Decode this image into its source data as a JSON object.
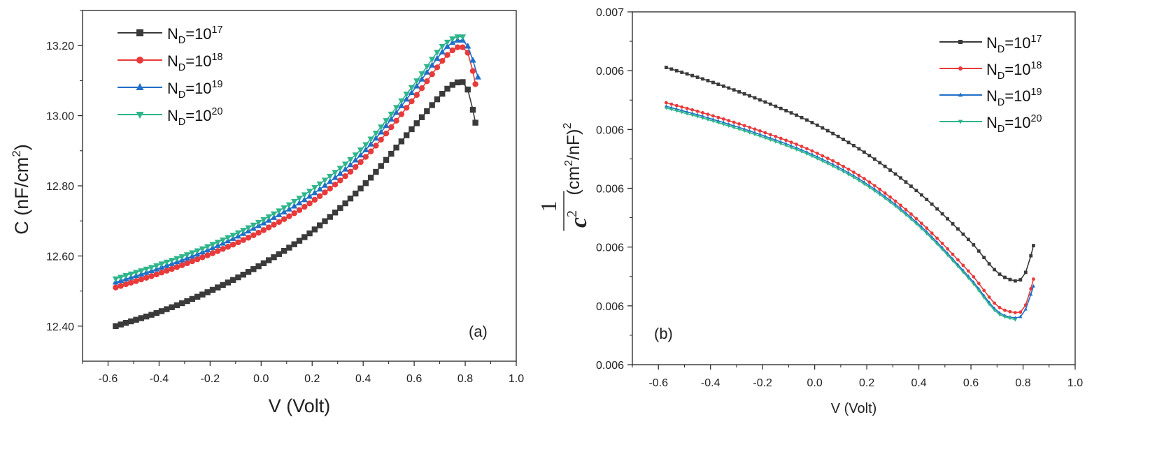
{
  "colors": {
    "black": "#3a3a3a",
    "red": "#e83a3a",
    "blue": "#1f6fc8",
    "green": "#2eb58a"
  },
  "chart_data": [
    {
      "panel_label": "(a)",
      "type": "line",
      "ylabel_main": "C (nF/cm",
      "ylabel_sup": "2",
      "ylabel_end": ")",
      "xlabel": "V (Volt)",
      "xlim": [
        -0.7,
        1.0
      ],
      "ylim": [
        12.3,
        13.3
      ],
      "xticks": [
        "-0.6",
        "-0.4",
        "-0.2",
        "0.0",
        "0.2",
        "0.4",
        "0.6",
        "0.8",
        "1.0"
      ],
      "yticks": [
        "12.40",
        "12.60",
        "12.80",
        "13.00",
        "13.20"
      ],
      "legend_placement": "top-left",
      "series": [
        {
          "name_base": "N",
          "name_sub": "D",
          "name_mid": "=10",
          "name_sup": "17",
          "color": "#3a3a3a",
          "marker": "square",
          "anchors": [
            [
              -0.57,
              12.4
            ],
            [
              -0.4,
              12.44
            ],
            [
              -0.2,
              12.5
            ],
            [
              0.0,
              12.575
            ],
            [
              0.2,
              12.67
            ],
            [
              0.4,
              12.8
            ],
            [
              0.6,
              12.97
            ],
            [
              0.72,
              13.07
            ],
            [
              0.77,
              13.095
            ],
            [
              0.8,
              13.09
            ],
            [
              0.82,
              13.05
            ],
            [
              0.84,
              12.98
            ]
          ]
        },
        {
          "name_base": "N",
          "name_sub": "D",
          "name_mid": "=10",
          "name_sup": "18",
          "color": "#e83a3a",
          "marker": "circle",
          "anchors": [
            [
              -0.57,
              12.51
            ],
            [
              -0.4,
              12.55
            ],
            [
              -0.2,
              12.605
            ],
            [
              0.0,
              12.67
            ],
            [
              0.2,
              12.755
            ],
            [
              0.4,
              12.875
            ],
            [
              0.6,
              13.05
            ],
            [
              0.72,
              13.165
            ],
            [
              0.77,
              13.195
            ],
            [
              0.8,
              13.19
            ],
            [
              0.82,
              13.16
            ],
            [
              0.84,
              13.09
            ]
          ]
        },
        {
          "name_base": "N",
          "name_sub": "D",
          "name_mid": "=10",
          "name_sup": "19",
          "color": "#1f6fc8",
          "marker": "triangle-up",
          "anchors": [
            [
              -0.57,
              12.525
            ],
            [
              -0.4,
              12.565
            ],
            [
              -0.2,
              12.62
            ],
            [
              0.0,
              12.69
            ],
            [
              0.2,
              12.775
            ],
            [
              0.4,
              12.895
            ],
            [
              0.6,
              13.075
            ],
            [
              0.72,
              13.19
            ],
            [
              0.77,
              13.215
            ],
            [
              0.8,
              13.21
            ],
            [
              0.82,
              13.18
            ],
            [
              0.85,
              13.11
            ]
          ]
        },
        {
          "name_base": "N",
          "name_sub": "D",
          "name_mid": "=10",
          "name_sup": "20",
          "color": "#2eb58a",
          "marker": "triangle-down",
          "anchors": [
            [
              -0.57,
              12.535
            ],
            [
              -0.4,
              12.575
            ],
            [
              -0.2,
              12.63
            ],
            [
              0.0,
              12.7
            ],
            [
              0.2,
              12.79
            ],
            [
              0.4,
              12.91
            ],
            [
              0.6,
              13.09
            ],
            [
              0.7,
              13.19
            ],
            [
              0.74,
              13.215
            ],
            [
              0.77,
              13.225
            ],
            [
              0.79,
              13.225
            ]
          ]
        }
      ]
    },
    {
      "panel_label": "(b)",
      "type": "line",
      "ylabel_num": "1",
      "ylabel_den": "c",
      "ylabel_den_sup": "2",
      "ylabel_unit": "(cm",
      "ylabel_unit_sup": "2",
      "ylabel_unit_mid": "/nF)",
      "ylabel_unit_sup2": "2",
      "xlabel": "V (Volt)",
      "xlim": [
        -0.7,
        1.0
      ],
      "yticks": [
        "0.006",
        "0.006",
        "0.006",
        "0.006",
        "0.006",
        "0.006",
        "0.007"
      ],
      "xticks": [
        "-0.6",
        "-0.4",
        "-0.2",
        "0.0",
        "0.2",
        "0.4",
        "0.6",
        "0.8",
        "1.0"
      ],
      "legend_placement": "top-right",
      "series": [
        {
          "name_base": "N",
          "name_sub": "D",
          "name_mid": "=10",
          "name_sup": "17",
          "color": "#3a3a3a",
          "marker": "square",
          "anchors": [
            [
              -0.57,
              0.8425
            ],
            [
              -0.4,
              0.8025
            ],
            [
              -0.2,
              0.7475
            ],
            [
              0.0,
              0.6825
            ],
            [
              0.2,
              0.5975
            ],
            [
              0.4,
              0.4875
            ],
            [
              0.6,
              0.3475
            ],
            [
              0.7,
              0.2625
            ],
            [
              0.77,
              0.2375
            ],
            [
              0.8,
              0.2475
            ],
            [
              0.82,
              0.2825
            ],
            [
              0.84,
              0.3375
            ]
          ]
        },
        {
          "name_base": "N",
          "name_sub": "D",
          "name_mid": "=10",
          "name_sup": "18",
          "color": "#e83a3a",
          "marker": "circle",
          "anchors": [
            [
              -0.57,
              0.7425
            ],
            [
              -0.4,
              0.7075
            ],
            [
              -0.2,
              0.66
            ],
            [
              0.0,
              0.6025
            ],
            [
              0.2,
              0.5225
            ],
            [
              0.4,
              0.4075
            ],
            [
              0.6,
              0.2575
            ],
            [
              0.7,
              0.1675
            ],
            [
              0.77,
              0.1475
            ],
            [
              0.8,
              0.155
            ],
            [
              0.82,
              0.19
            ],
            [
              0.84,
              0.2425
            ]
          ]
        },
        {
          "name_base": "N",
          "name_sub": "D",
          "name_mid": "=10",
          "name_sup": "19",
          "color": "#1f6fc8",
          "marker": "triangle-up",
          "anchors": [
            [
              -0.57,
              0.7325
            ],
            [
              -0.4,
              0.6975
            ],
            [
              -0.2,
              0.65
            ],
            [
              0.0,
              0.5925
            ],
            [
              0.2,
              0.5125
            ],
            [
              0.4,
              0.3975
            ],
            [
              0.6,
              0.2425
            ],
            [
              0.7,
              0.1525
            ],
            [
              0.77,
              0.1325
            ],
            [
              0.8,
              0.1425
            ],
            [
              0.82,
              0.1775
            ],
            [
              0.84,
              0.2225
            ]
          ]
        },
        {
          "name_base": "N",
          "name_sub": "D",
          "name_mid": "=10",
          "name_sup": "20",
          "color": "#2eb58a",
          "marker": "triangle-down",
          "anchors": [
            [
              -0.57,
              0.7275
            ],
            [
              -0.4,
              0.6925
            ],
            [
              -0.2,
              0.645
            ],
            [
              0.0,
              0.5875
            ],
            [
              0.2,
              0.5075
            ],
            [
              0.4,
              0.3925
            ],
            [
              0.6,
              0.2375
            ],
            [
              0.7,
              0.1475
            ],
            [
              0.77,
              0.1275
            ]
          ]
        }
      ]
    }
  ]
}
